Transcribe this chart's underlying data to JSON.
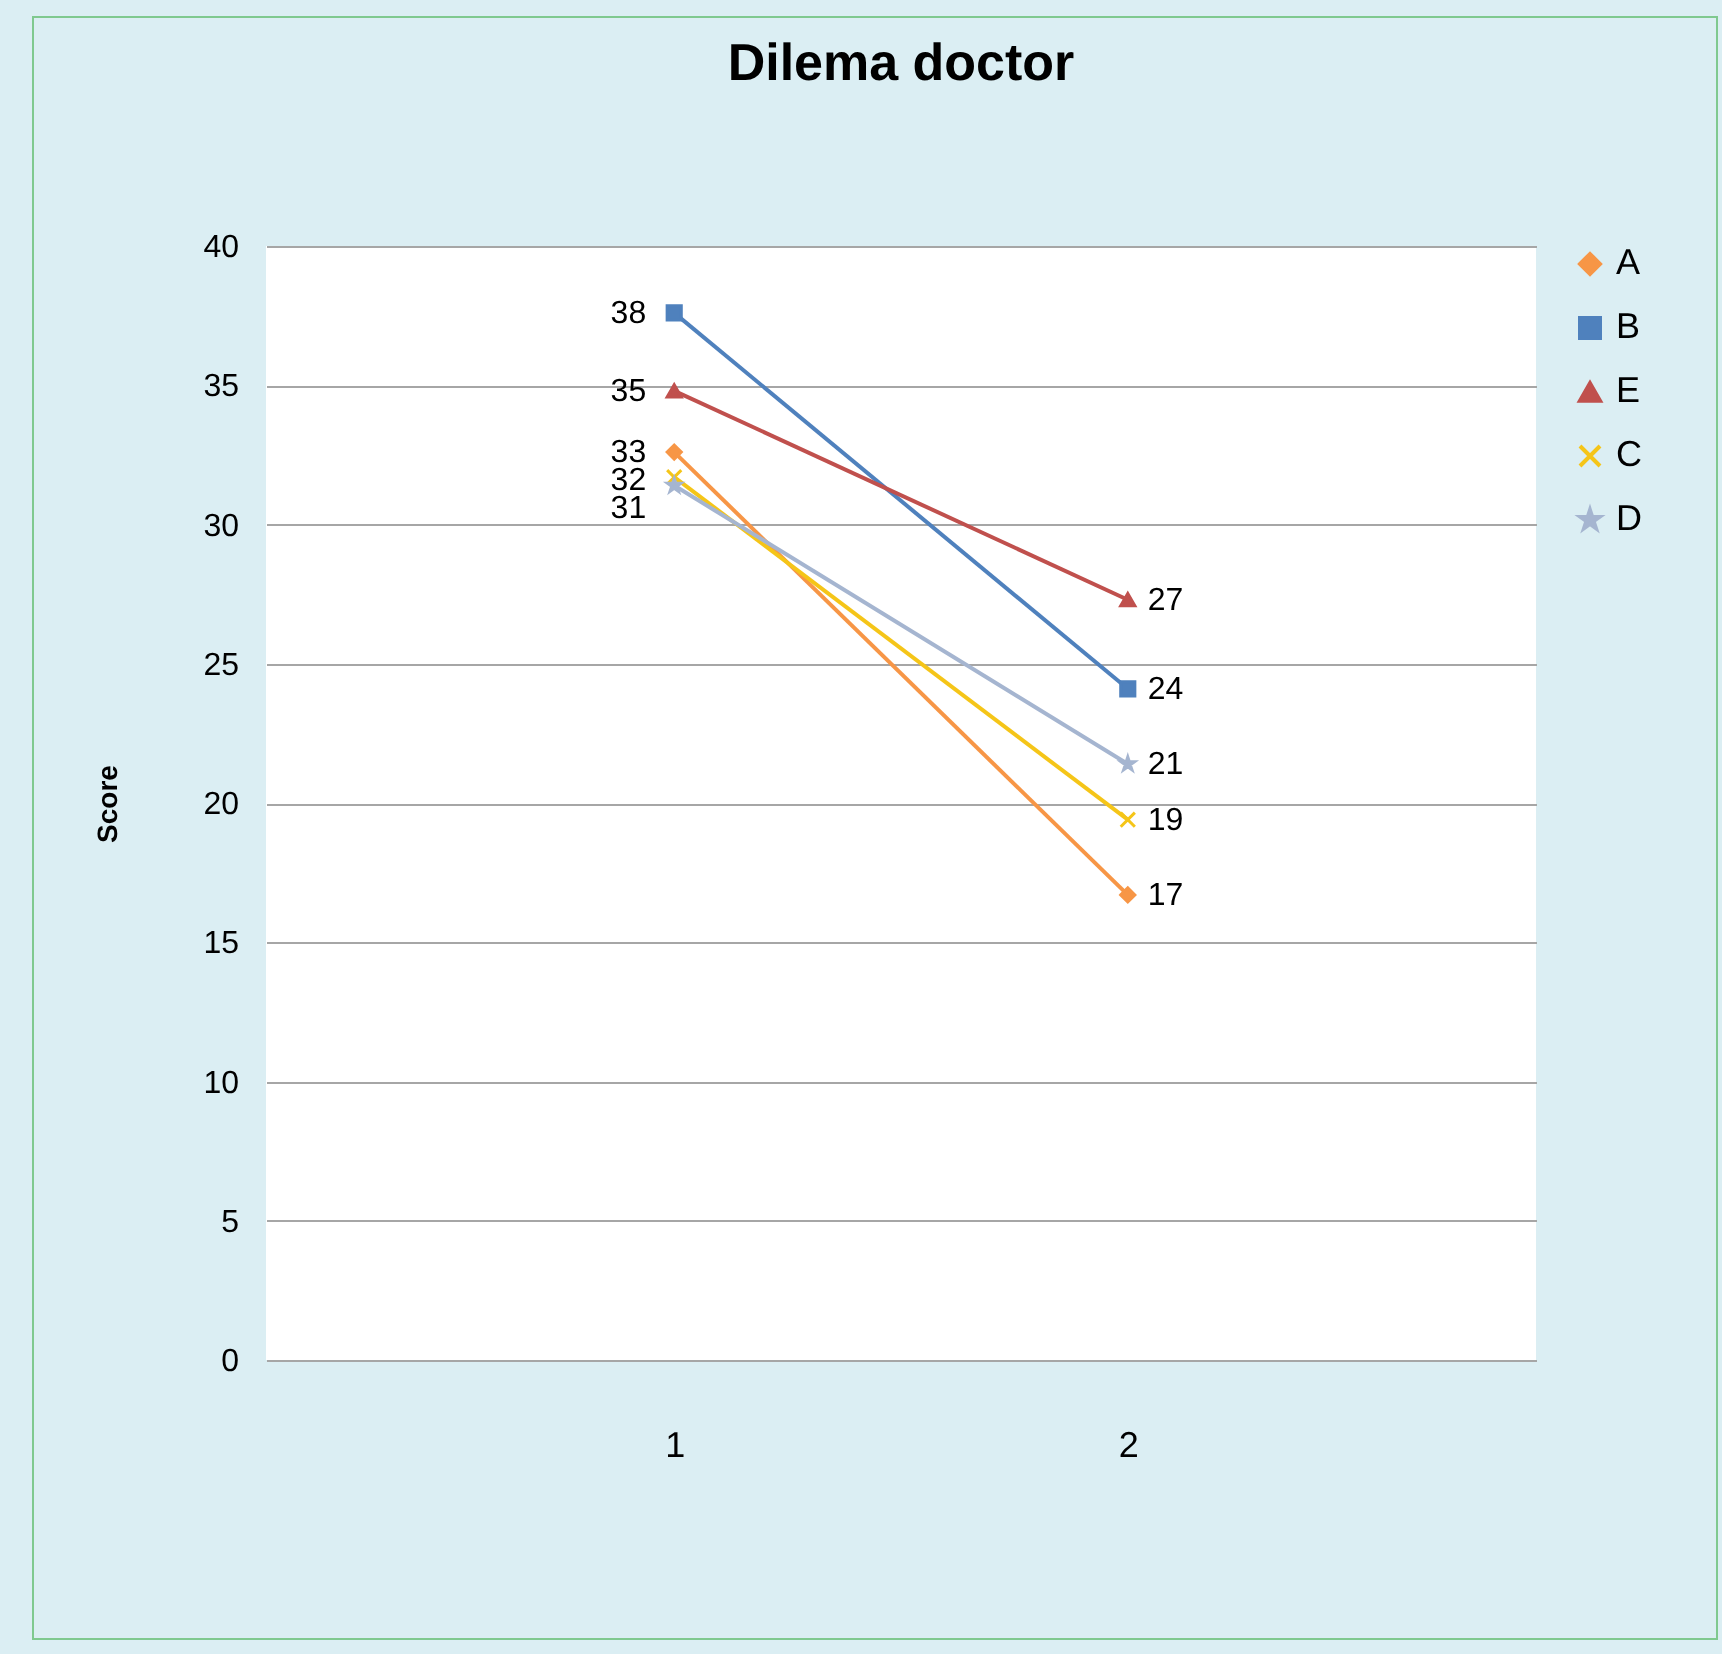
{
  "chart_data": {
    "type": "line",
    "title": "Dilema doctor",
    "ylabel": "Score",
    "categories": [
      "1",
      "2"
    ],
    "series": [
      {
        "name": "A",
        "color": "#f79646",
        "marker": "diamond",
        "values": [
          32.6,
          16.7
        ],
        "value_labels": [
          "33",
          "17"
        ]
      },
      {
        "name": "B",
        "color": "#4f81bd",
        "marker": "square",
        "values": [
          37.6,
          24.1
        ],
        "value_labels": [
          "38",
          "24"
        ]
      },
      {
        "name": "E",
        "color": "#c0504d",
        "marker": "triangle",
        "values": [
          34.8,
          27.3
        ],
        "value_labels": [
          "35",
          "27"
        ]
      },
      {
        "name": "C",
        "color": "#f5c518",
        "marker": "cross",
        "values": [
          31.7,
          19.4
        ],
        "value_labels": [
          "32",
          "19"
        ]
      },
      {
        "name": "D",
        "color": "#a5b5d0",
        "marker": "star",
        "values": [
          31.4,
          21.4
        ],
        "value_labels": [
          "31",
          "21"
        ]
      }
    ],
    "ylim": [
      0,
      40
    ],
    "yticks": [
      0,
      5,
      10,
      15,
      20,
      25,
      30,
      35,
      40
    ],
    "grid": "y",
    "legend": "right"
  }
}
